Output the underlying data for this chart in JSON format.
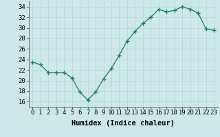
{
  "x": [
    0,
    1,
    2,
    3,
    4,
    5,
    6,
    7,
    8,
    9,
    10,
    11,
    12,
    13,
    14,
    15,
    16,
    17,
    18,
    19,
    20,
    21,
    22,
    23
  ],
  "y": [
    23.5,
    23.0,
    21.5,
    21.5,
    21.5,
    20.5,
    17.8,
    16.3,
    17.8,
    20.3,
    22.3,
    24.8,
    27.5,
    29.3,
    30.8,
    32.0,
    33.5,
    33.0,
    33.3,
    34.0,
    33.5,
    32.8,
    29.8,
    29.5
  ],
  "xlim": [
    -0.5,
    23.5
  ],
  "ylim": [
    15,
    35
  ],
  "yticks": [
    16,
    18,
    20,
    22,
    24,
    26,
    28,
    30,
    32,
    34
  ],
  "xtick_labels": [
    "0",
    "1",
    "2",
    "3",
    "4",
    "5",
    "6",
    "7",
    "8",
    "9",
    "10",
    "11",
    "12",
    "13",
    "14",
    "15",
    "16",
    "17",
    "18",
    "19",
    "20",
    "21",
    "22",
    "23"
  ],
  "xlabel": "Humidex (Indice chaleur)",
  "line_color": "#1a7a5e",
  "marker": "+",
  "bg_color": "#cce8e8",
  "grid_color": "#b8d8d8",
  "label_fontsize": 7.5,
  "tick_fontsize": 6.5
}
